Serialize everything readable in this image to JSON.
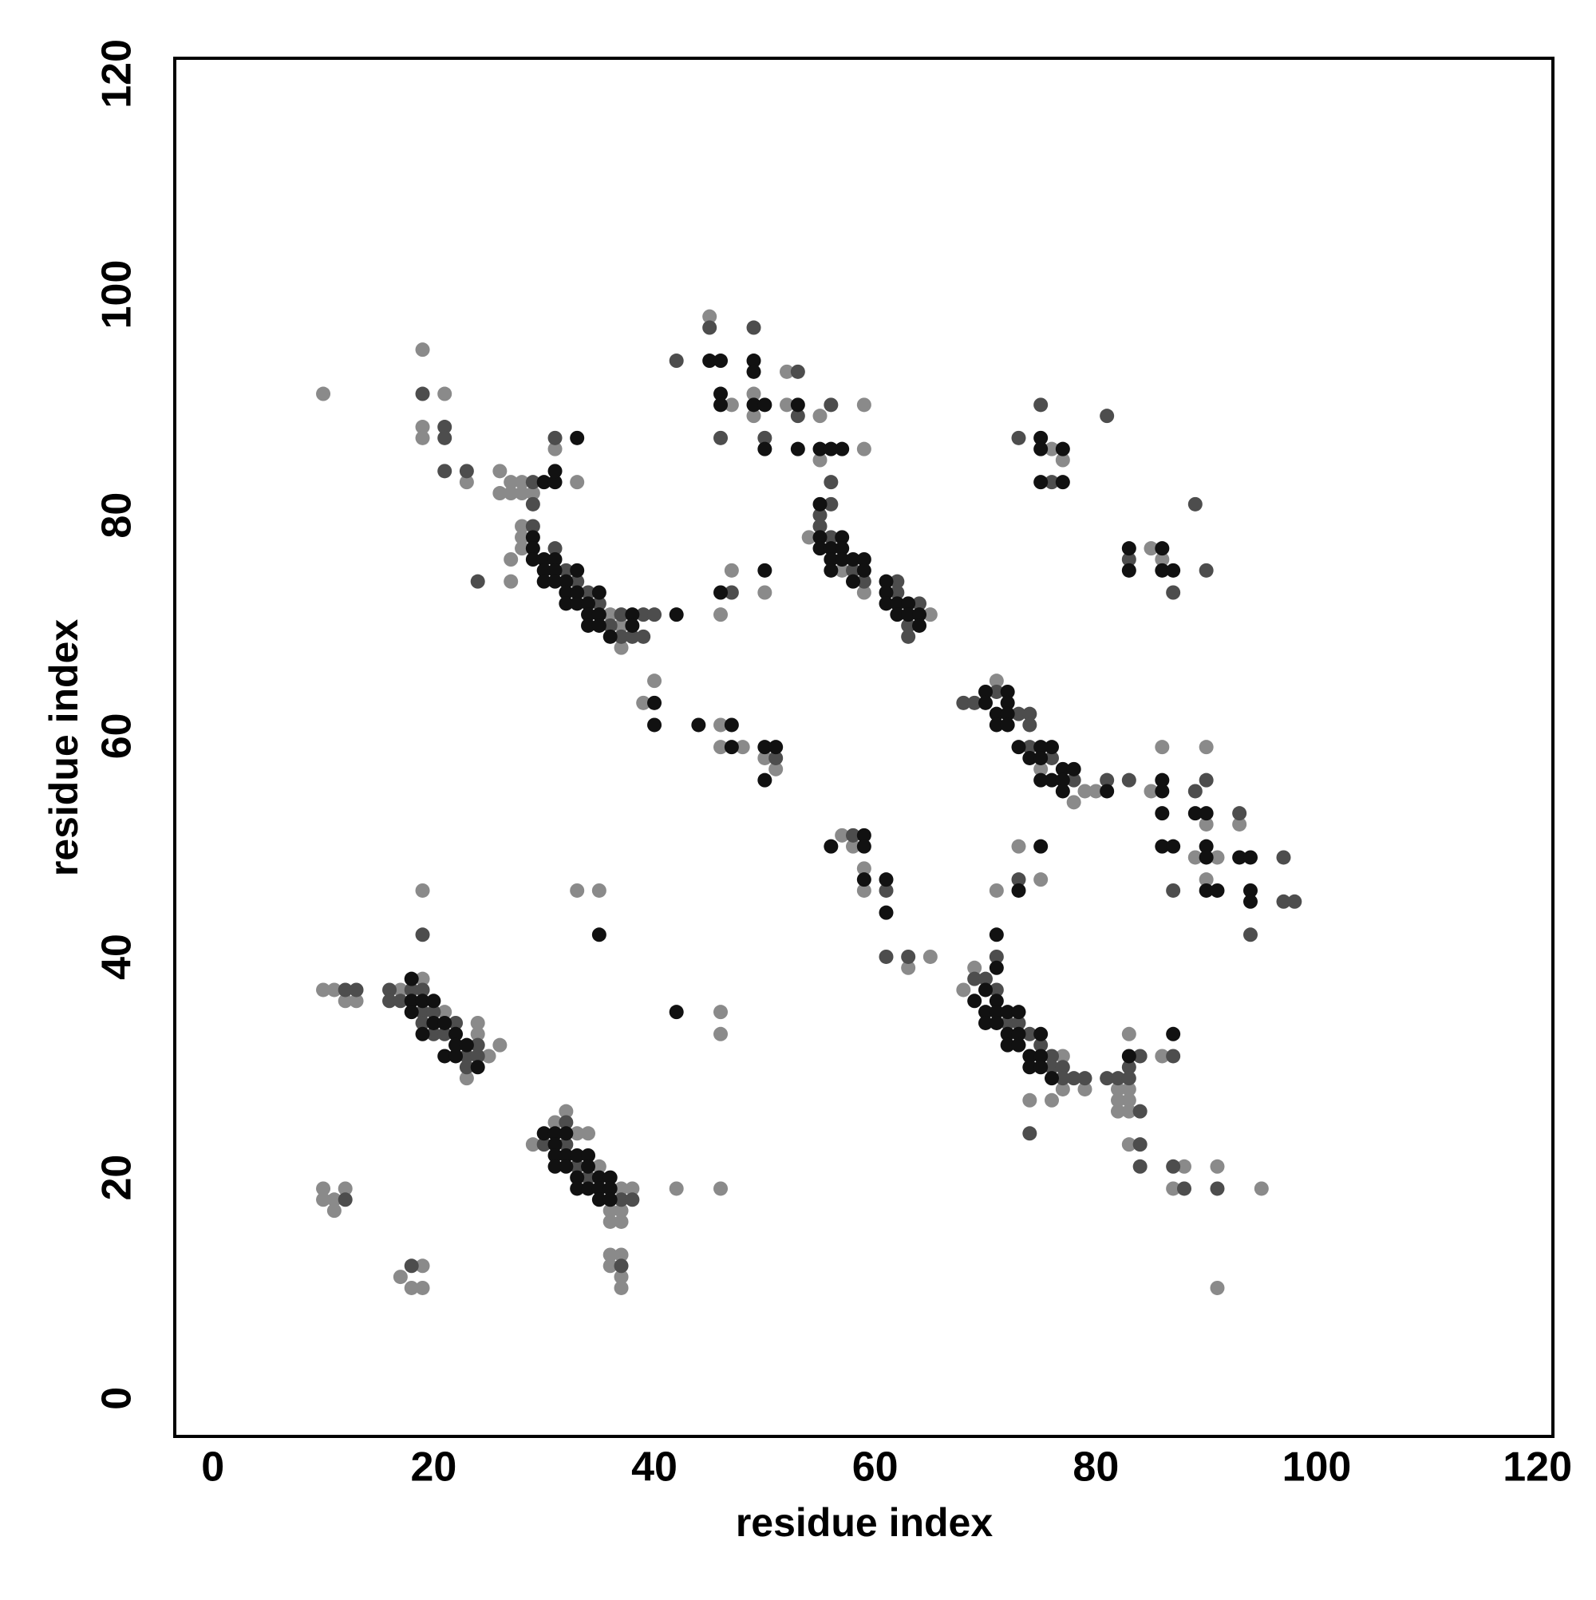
{
  "chart_data": {
    "type": "scatter",
    "xlabel": "residue index",
    "ylabel": "residue index",
    "xlim": [
      -3.45,
      121.4
    ],
    "ylim": [
      -3.45,
      121.4
    ],
    "xticks": [
      0,
      20,
      40,
      60,
      80,
      100,
      120
    ],
    "yticks": [
      0,
      20,
      40,
      60,
      80,
      100,
      120
    ],
    "grid": false,
    "series": [
      {
        "color": "#8a8a8a",
        "x": [
          10,
          19,
          21,
          19,
          19,
          23,
          26,
          26,
          27,
          27,
          28,
          28,
          29,
          31,
          33,
          28,
          28,
          28,
          36,
          37,
          37,
          27,
          27,
          40,
          39,
          46,
          46,
          48,
          50,
          51,
          46,
          47,
          50,
          45,
          47,
          49,
          49,
          52,
          52,
          55,
          55,
          59,
          59,
          54,
          57,
          59,
          65,
          76,
          77,
          85,
          86,
          71,
          75,
          78,
          79,
          80,
          85,
          86,
          89,
          90,
          90,
          90,
          91,
          93,
          57,
          58,
          59,
          59,
          63,
          65,
          73,
          75,
          71,
          68,
          69,
          76,
          77,
          77,
          74,
          79,
          82,
          82,
          82,
          83,
          83,
          83,
          83,
          83,
          86,
          88,
          87,
          91,
          95,
          91,
          10,
          11,
          12,
          13,
          17,
          19,
          21,
          23,
          24,
          24,
          25,
          26,
          19,
          33,
          35,
          46,
          46,
          29,
          31,
          32,
          33,
          34,
          35,
          36,
          36,
          37,
          37,
          37,
          38,
          42,
          46,
          36,
          37,
          36,
          37,
          37,
          10,
          10,
          11,
          12,
          11,
          17,
          19,
          18,
          19
        ],
        "values": [
          91,
          95,
          91,
          88,
          87,
          83,
          84,
          82,
          83,
          82,
          83,
          82,
          82,
          86,
          83,
          79,
          78,
          77,
          71,
          70,
          68,
          76,
          74,
          65,
          63,
          61,
          59,
          59,
          58,
          57,
          71,
          75,
          73,
          98,
          90,
          91,
          89,
          93,
          90,
          89,
          85,
          90,
          86,
          78,
          75,
          73,
          71,
          86,
          85,
          77,
          76,
          65,
          57,
          54,
          55,
          55,
          55,
          59,
          49,
          59,
          52,
          47,
          49,
          52,
          51,
          50,
          48,
          46,
          39,
          40,
          50,
          47,
          46,
          37,
          39,
          27,
          31,
          28,
          27,
          28,
          28,
          27,
          26,
          33,
          28,
          27,
          26,
          23,
          31,
          21,
          19,
          21,
          19,
          10,
          37,
          37,
          36,
          36,
          37,
          38,
          35,
          29,
          34,
          33,
          31,
          32,
          46,
          46,
          46,
          35,
          33,
          23,
          25,
          26,
          24,
          24,
          21,
          17,
          16,
          19,
          17,
          16,
          19,
          19,
          19,
          13,
          13,
          12,
          11,
          10,
          19,
          18,
          18,
          19,
          17,
          11,
          12,
          10,
          10
        ]
      },
      {
        "color": "#4d4d4d",
        "x": [
          19,
          21,
          21,
          21,
          23,
          29,
          29,
          31,
          29,
          31,
          32,
          33,
          34,
          35,
          36,
          37,
          37,
          38,
          39,
          39,
          40,
          24,
          51,
          47,
          42,
          45,
          46,
          49,
          50,
          53,
          53,
          56,
          56,
          56,
          55,
          55,
          56,
          58,
          59,
          62,
          62,
          63,
          63,
          64,
          73,
          75,
          76,
          81,
          83,
          87,
          89,
          90,
          68,
          69,
          71,
          73,
          74,
          74,
          74,
          76,
          78,
          81,
          83,
          87,
          89,
          90,
          93,
          94,
          97,
          97,
          98,
          58,
          61,
          61,
          63,
          73,
          69,
          70,
          71,
          71,
          72,
          73,
          74,
          75,
          76,
          76,
          77,
          77,
          74,
          78,
          79,
          81,
          82,
          83,
          83,
          84,
          84,
          84,
          84,
          87,
          87,
          88,
          91,
          12,
          13,
          16,
          16,
          17,
          18,
          19,
          19,
          19,
          20,
          20,
          21,
          22,
          23,
          23,
          24,
          24,
          19,
          30,
          32,
          32,
          33,
          34,
          37,
          38,
          37,
          12,
          18
        ],
        "values": [
          91,
          88,
          87,
          84,
          84,
          83,
          81,
          87,
          79,
          77,
          75,
          74,
          73,
          72,
          70,
          71,
          69,
          69,
          71,
          69,
          71,
          74,
          58,
          73,
          94,
          97,
          87,
          97,
          87,
          93,
          89,
          90,
          83,
          81,
          80,
          79,
          78,
          75,
          74,
          74,
          73,
          70,
          69,
          72,
          87,
          90,
          83,
          89,
          76,
          73,
          81,
          75,
          63,
          63,
          64,
          62,
          62,
          61,
          59,
          58,
          56,
          56,
          56,
          46,
          55,
          56,
          53,
          42,
          49,
          45,
          45,
          51,
          46,
          40,
          40,
          47,
          38,
          38,
          40,
          37,
          34,
          34,
          33,
          32,
          31,
          30,
          30,
          29,
          24,
          29,
          29,
          29,
          29,
          30,
          29,
          31,
          26,
          23,
          21,
          31,
          21,
          19,
          19,
          37,
          37,
          37,
          36,
          36,
          37,
          37,
          35,
          34,
          35,
          33,
          33,
          34,
          31,
          30,
          32,
          31,
          42,
          23,
          25,
          23,
          21,
          20,
          18,
          18,
          12,
          18,
          12
        ]
      },
      {
        "color": "#111111",
        "x": [
          30,
          31,
          31,
          33,
          29,
          29,
          29,
          30,
          30,
          30,
          31,
          31,
          31,
          32,
          32,
          32,
          33,
          33,
          33,
          34,
          34,
          34,
          35,
          35,
          35,
          36,
          38,
          38,
          42,
          40,
          40,
          44,
          47,
          47,
          50,
          51,
          50,
          46,
          50,
          45,
          46,
          46,
          46,
          49,
          49,
          49,
          50,
          50,
          53,
          53,
          55,
          56,
          57,
          55,
          55,
          55,
          56,
          56,
          56,
          57,
          57,
          57,
          58,
          58,
          59,
          59,
          61,
          61,
          61,
          62,
          62,
          63,
          63,
          64,
          64,
          75,
          75,
          77,
          75,
          77,
          83,
          83,
          86,
          86,
          87,
          70,
          70,
          71,
          71,
          72,
          72,
          72,
          72,
          73,
          74,
          75,
          75,
          75,
          76,
          76,
          77,
          77,
          77,
          78,
          81,
          86,
          86,
          86,
          86,
          87,
          89,
          90,
          90,
          90,
          90,
          91,
          93,
          94,
          94,
          94,
          56,
          59,
          59,
          59,
          61,
          61,
          75,
          73,
          71,
          69,
          70,
          70,
          70,
          71,
          71,
          71,
          71,
          72,
          72,
          72,
          73,
          73,
          73,
          74,
          74,
          75,
          75,
          75,
          76,
          83,
          87,
          18,
          18,
          18,
          19,
          19,
          20,
          20,
          21,
          21,
          22,
          22,
          22,
          23,
          24,
          35,
          42,
          30,
          31,
          31,
          31,
          31,
          32,
          32,
          32,
          33,
          33,
          33,
          34,
          34,
          34,
          35,
          35,
          35,
          36,
          36,
          36
        ],
        "values": [
          83,
          83,
          84,
          87,
          78,
          77,
          76,
          76,
          75,
          74,
          76,
          75,
          74,
          74,
          73,
          72,
          75,
          73,
          72,
          72,
          71,
          70,
          73,
          71,
          70,
          69,
          71,
          70,
          71,
          63,
          61,
          61,
          61,
          59,
          59,
          59,
          56,
          73,
          75,
          94,
          94,
          91,
          90,
          94,
          93,
          90,
          90,
          86,
          90,
          86,
          86,
          86,
          86,
          81,
          78,
          77,
          77,
          76,
          75,
          78,
          77,
          76,
          76,
          74,
          76,
          75,
          74,
          73,
          72,
          72,
          71,
          72,
          71,
          71,
          70,
          87,
          86,
          86,
          83,
          83,
          77,
          75,
          77,
          75,
          75,
          64,
          63,
          62,
          61,
          64,
          63,
          62,
          61,
          59,
          58,
          59,
          58,
          56,
          59,
          56,
          57,
          56,
          55,
          57,
          55,
          56,
          55,
          53,
          50,
          50,
          53,
          53,
          50,
          49,
          46,
          46,
          49,
          49,
          46,
          45,
          50,
          51,
          50,
          47,
          47,
          44,
          50,
          46,
          42,
          36,
          37,
          35,
          34,
          39,
          36,
          35,
          34,
          35,
          33,
          32,
          35,
          33,
          32,
          31,
          30,
          33,
          31,
          30,
          29,
          31,
          33,
          38,
          36,
          35,
          36,
          33,
          36,
          34,
          34,
          31,
          33,
          32,
          31,
          32,
          30,
          42,
          35,
          24,
          24,
          23,
          22,
          21,
          24,
          22,
          21,
          22,
          20,
          19,
          22,
          21,
          19,
          20,
          19,
          18,
          20,
          19,
          18
        ]
      }
    ]
  }
}
